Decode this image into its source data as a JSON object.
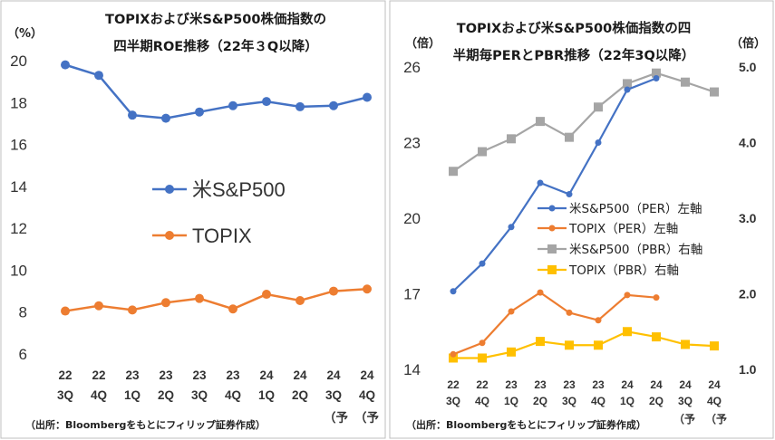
{
  "chart_data": [
    {
      "type": "line",
      "title_line1": "TOPIXおよび米S&P500株価指数の",
      "title_line2": "四半期ROE推移（22年３Q以降）",
      "ylabel": "（%）",
      "ylim": [
        6,
        20
      ],
      "yticks": [
        6,
        8,
        10,
        12,
        14,
        16,
        18,
        20
      ],
      "categories": [
        [
          "22",
          "3Q"
        ],
        [
          "22",
          "4Q"
        ],
        [
          "23",
          "1Q"
        ],
        [
          "23",
          "2Q"
        ],
        [
          "23",
          "3Q"
        ],
        [
          "23",
          "4Q"
        ],
        [
          "24",
          "1Q"
        ],
        [
          "24",
          "2Q"
        ],
        [
          "24",
          "3Q"
        ],
        [
          "24",
          "4Q"
        ]
      ],
      "forecast_note": "（予",
      "series": [
        {
          "name": "米S&P500",
          "color": "#4472c4",
          "values": [
            19.8,
            19.3,
            17.4,
            17.25,
            17.55,
            17.85,
            18.05,
            17.8,
            17.85,
            18.25
          ]
        },
        {
          "name": "TOPIX",
          "color": "#ed7d31",
          "values": [
            8.05,
            8.3,
            8.1,
            8.45,
            8.65,
            8.15,
            8.85,
            8.55,
            9.0,
            9.1
          ]
        }
      ],
      "source": "（出所：Bloombergをもとにフィリップ証券作成）"
    },
    {
      "type": "line",
      "title_line1": "TOPIXおよび米S&P500株価指数の四",
      "title_line2": "半期毎PERとPBR推移（22年3Q以降）",
      "ylabel_left": "（倍）",
      "ylabel_right": "（倍）",
      "ylim_left": [
        14,
        26
      ],
      "yticks_left": [
        14,
        17,
        20,
        23,
        26
      ],
      "ylim_right": [
        1.0,
        5.0
      ],
      "yticks_right": [
        "1.0",
        "2.0",
        "3.0",
        "4.0",
        "5.0"
      ],
      "categories": [
        [
          "22",
          "3Q"
        ],
        [
          "22",
          "4Q"
        ],
        [
          "23",
          "1Q"
        ],
        [
          "23",
          "2Q"
        ],
        [
          "23",
          "3Q"
        ],
        [
          "23",
          "4Q"
        ],
        [
          "24",
          "1Q"
        ],
        [
          "24",
          "2Q"
        ],
        [
          "24",
          "3Q"
        ],
        [
          "24",
          "4Q"
        ]
      ],
      "forecast_note": "（予",
      "series": [
        {
          "name": "米S&P500（PER）左軸",
          "axis": "left",
          "color": "#4472c4",
          "marker": "circle",
          "values": [
            17.1,
            18.2,
            19.65,
            21.4,
            20.95,
            23.0,
            25.1,
            25.55,
            null,
            null
          ]
        },
        {
          "name": "TOPIX（PER）左軸",
          "axis": "left",
          "color": "#ed7d31",
          "marker": "circle",
          "values": [
            14.6,
            15.05,
            16.3,
            17.05,
            16.25,
            15.95,
            16.95,
            16.85,
            null,
            null
          ]
        },
        {
          "name": "米S&P500（PBR）右軸",
          "axis": "right",
          "color": "#a5a5a5",
          "marker": "square",
          "values": [
            3.62,
            3.88,
            4.05,
            4.28,
            4.07,
            4.47,
            4.78,
            4.92,
            4.8,
            4.67
          ]
        },
        {
          "name": "TOPIX（PBR）右軸",
          "axis": "right",
          "color": "#ffc000",
          "marker": "square",
          "values": [
            1.15,
            1.15,
            1.23,
            1.37,
            1.32,
            1.32,
            1.5,
            1.43,
            1.33,
            1.31
          ]
        }
      ],
      "source": "（出所：Bloombergをもとにフィリップ証券作成）"
    }
  ]
}
